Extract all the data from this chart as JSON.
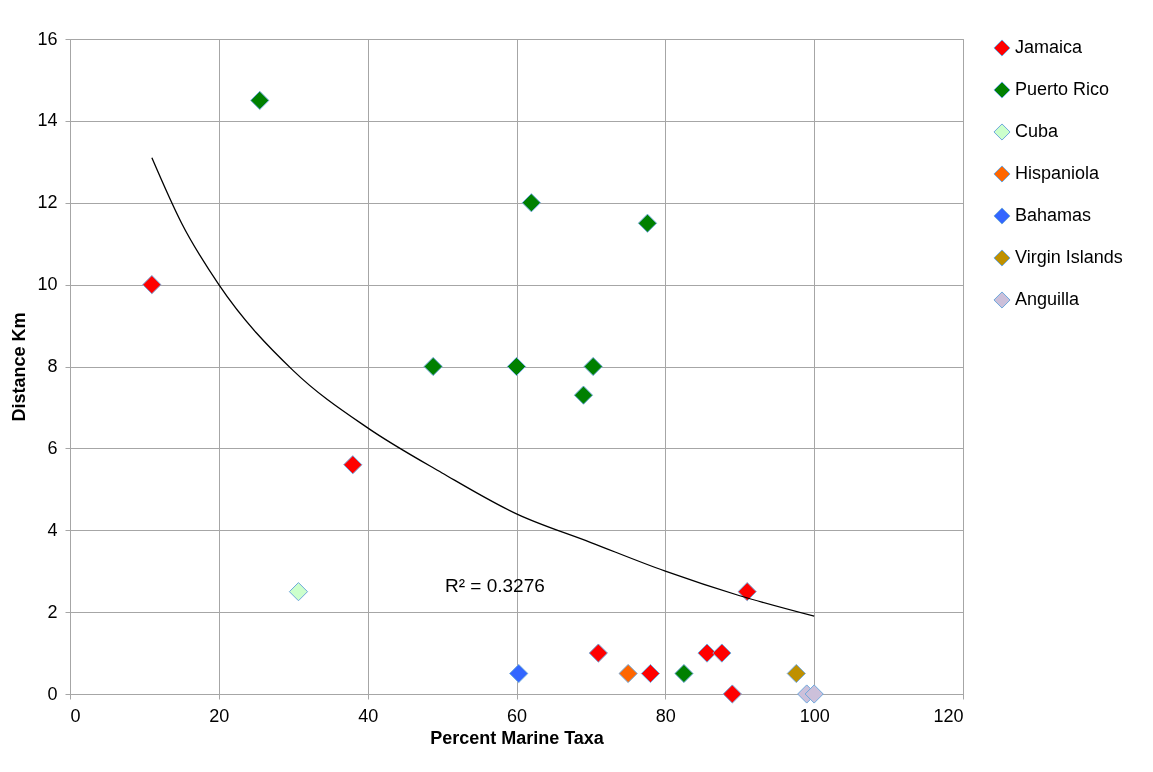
{
  "chart_data": {
    "type": "scatter",
    "xlabel": "Percent Marine Taxa",
    "ylabel": "Distance Km",
    "xlim": [
      0,
      120
    ],
    "ylim": [
      0,
      16
    ],
    "xticks": [
      0,
      20,
      40,
      60,
      80,
      100,
      120
    ],
    "yticks": [
      0,
      2,
      4,
      6,
      8,
      10,
      12,
      14,
      16
    ],
    "grid": true,
    "legend": "right",
    "marker": "diamond",
    "series": [
      {
        "name": "Jamaica",
        "color": "#ff0000",
        "x": [
          11,
          38,
          91,
          71,
          78,
          85.6,
          87.6,
          89
        ],
        "values": [
          10,
          5.6,
          2.5,
          1,
          0.5,
          1,
          1,
          0
        ]
      },
      {
        "name": "Puerto Rico",
        "color": "#008000",
        "x": [
          25.5,
          62,
          77.6,
          48.8,
          60,
          70.3,
          69,
          82.5
        ],
        "values": [
          14.5,
          12,
          11.5,
          8,
          8,
          8,
          7.3,
          0.5
        ]
      },
      {
        "name": "Cuba",
        "color": "#ccffcc",
        "x": [
          30.7
        ],
        "values": [
          2.5
        ]
      },
      {
        "name": "Hispaniola",
        "color": "#ff6600",
        "x": [
          75
        ],
        "values": [
          0.5
        ]
      },
      {
        "name": "Bahamas",
        "color": "#3366ff",
        "x": [
          60.3
        ],
        "values": [
          0.5
        ]
      },
      {
        "name": "Virgin Islands",
        "color": "#bf9000",
        "x": [
          97.6
        ],
        "values": [
          0.5
        ]
      },
      {
        "name": "Anguilla",
        "color": "#ccc0da",
        "x": [
          99,
          100
        ],
        "values": [
          0,
          0
        ]
      },
      {
        "type": "line",
        "marker": "none",
        "color": "#000000",
        "x": [
          11,
          15,
          20,
          30,
          40,
          50,
          60,
          70,
          80,
          90,
          100
        ],
        "values": [
          13.1,
          11.5,
          10.0,
          7.9,
          6.5,
          5.4,
          4.4,
          3.7,
          3.0,
          2.4,
          1.9
        ]
      }
    ],
    "annotations": [
      "R² = 0.3276"
    ]
  }
}
